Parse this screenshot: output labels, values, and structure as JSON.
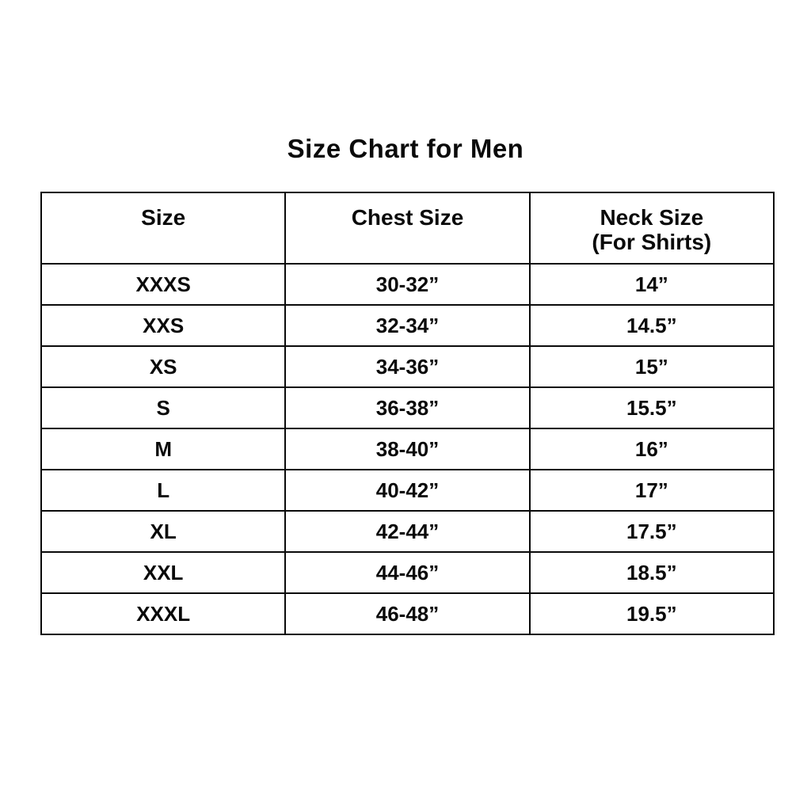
{
  "title": "Size Chart for Men",
  "table": {
    "columns": [
      {
        "label": "Size",
        "sublabel": ""
      },
      {
        "label": "Chest Size",
        "sublabel": ""
      },
      {
        "label": "Neck Size",
        "sublabel": "(For Shirts)"
      }
    ],
    "rows": [
      {
        "size": "XXXS",
        "chest": "30-32”",
        "neck": "14”"
      },
      {
        "size": "XXS",
        "chest": "32-34”",
        "neck": "14.5”"
      },
      {
        "size": "XS",
        "chest": "34-36”",
        "neck": "15”"
      },
      {
        "size": "S",
        "chest": "36-38”",
        "neck": "15.5”"
      },
      {
        "size": "M",
        "chest": "38-40”",
        "neck": "16”"
      },
      {
        "size": "L",
        "chest": "40-42”",
        "neck": "17”"
      },
      {
        "size": "XL",
        "chest": "42-44”",
        "neck": "17.5”"
      },
      {
        "size": "XXL",
        "chest": "44-46”",
        "neck": "18.5”"
      },
      {
        "size": "XXXL",
        "chest": "46-48”",
        "neck": "19.5”"
      }
    ]
  },
  "colors": {
    "text": "#0a0a0a",
    "border": "#0a0a0a",
    "background": "#ffffff"
  },
  "chart_data": {
    "type": "table",
    "title": "Size Chart for Men",
    "columns": [
      "Size",
      "Chest Size",
      "Neck Size (For Shirts)"
    ],
    "rows": [
      [
        "XXXS",
        "30-32”",
        "14”"
      ],
      [
        "XXS",
        "32-34”",
        "14.5”"
      ],
      [
        "XS",
        "34-36”",
        "15”"
      ],
      [
        "S",
        "36-38”",
        "15.5”"
      ],
      [
        "M",
        "38-40”",
        "16”"
      ],
      [
        "L",
        "40-42”",
        "17”"
      ],
      [
        "XL",
        "42-44”",
        "17.5”"
      ],
      [
        "XXL",
        "44-46”",
        "18.5”"
      ],
      [
        "XXXL",
        "46-48”",
        "19.5”"
      ]
    ]
  }
}
